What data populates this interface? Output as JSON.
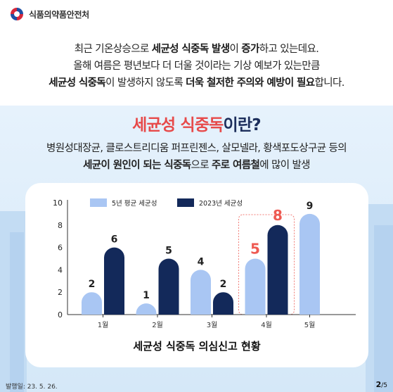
{
  "header": {
    "org_name": "식품의약품안전처"
  },
  "intro": {
    "line1": {
      "t1": "최근 기온상승으로 ",
      "b1": "세균성 식중독 발생",
      "t2": "이 ",
      "b2": "증가",
      "t3": "하고 있는데요."
    },
    "line2": "올해 여름은 평년보다 더 더울 것이라는 기상 예보가 있는만큼",
    "line3": {
      "b1": "세균성 식중독",
      "t1": "이 발생하지 않도록 ",
      "b2": "더욱 철저한 주의와 예방이 필요",
      "t2": "합니다."
    }
  },
  "heading": {
    "highlight": "세균성 식중독",
    "rest": "이란?"
  },
  "subtext": {
    "line1": "병원성대장균, 클로스트리디움 퍼프린젠스, 살모넬라, 황색포도상구균 등의",
    "line2": {
      "b1": "세균이 원인이 되는 식중독",
      "t1": "으로 ",
      "b2": "주로 여름철",
      "t2": "에 많이 발생"
    }
  },
  "chart_data": {
    "type": "bar",
    "title": "세균성 식중독 의심신고 현황",
    "categories": [
      "1월",
      "2월",
      "3월",
      "4월",
      "5월"
    ],
    "series": [
      {
        "name": "5년 평균 세균성",
        "values": [
          2,
          1,
          4,
          5,
          9
        ]
      },
      {
        "name": "2023년 세균성",
        "values": [
          6,
          5,
          2,
          8,
          null
        ]
      }
    ],
    "ylim": [
      0,
      10
    ],
    "yticks": [
      0,
      2,
      4,
      6,
      8,
      10
    ],
    "highlight_category": "4월",
    "legend_placement": "top",
    "colors": {
      "avg": "#a9c6f3",
      "y2023": "#13295a",
      "highlight_text": "#ee5a52",
      "axis": "#333333"
    }
  },
  "footer": {
    "date": "발행일: 23. 5. 26.",
    "page": "2",
    "total": "/5"
  }
}
